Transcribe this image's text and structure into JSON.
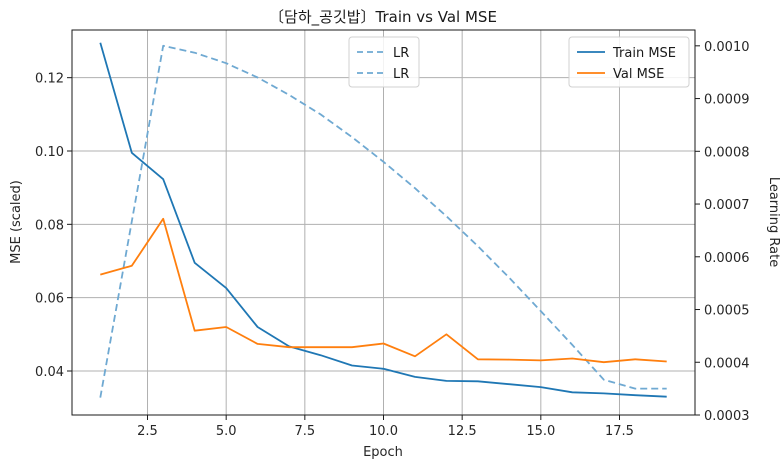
{
  "chart_data": {
    "type": "line",
    "title": "〔담하_공깃밥〕Train vs Val MSE",
    "xlabel": "Epoch",
    "ylabel_left": "MSE (scaled)",
    "ylabel_right": "Learning Rate",
    "xlim": [
      0.1,
      19.9
    ],
    "ylim_left": [
      0.028,
      0.133
    ],
    "ylim_right": [
      0.0003,
      0.00103
    ],
    "x_ticks": [
      2.5,
      5.0,
      7.5,
      10.0,
      12.5,
      15.0,
      17.5
    ],
    "x_tick_labels": [
      "2.5",
      "5.0",
      "7.5",
      "10.0",
      "12.5",
      "15.0",
      "17.5"
    ],
    "y_left_ticks": [
      0.04,
      0.06,
      0.08,
      0.1,
      0.12
    ],
    "y_left_tick_labels": [
      "0.04",
      "0.06",
      "0.08",
      "0.10",
      "0.12"
    ],
    "y_right_ticks": [
      0.0003,
      0.0004,
      0.0005,
      0.0006,
      0.0007,
      0.0008,
      0.0009,
      0.001
    ],
    "y_right_tick_labels": [
      "0.0003",
      "0.0004",
      "0.0005",
      "0.0006",
      "0.0007",
      "0.0008",
      "0.0009",
      "0.0010"
    ],
    "grid": true,
    "x": [
      1,
      2,
      3,
      4,
      5,
      6,
      7,
      8,
      9,
      10,
      11,
      12,
      13,
      14,
      15,
      16,
      17,
      18,
      19
    ],
    "series": [
      {
        "name": "Train MSE",
        "axis": "left",
        "color": "#1f77b4",
        "style": "solid",
        "values": [
          0.1295,
          0.0995,
          0.0923,
          0.0695,
          0.0626,
          0.052,
          0.0467,
          0.0443,
          0.0415,
          0.0406,
          0.0384,
          0.0373,
          0.0372,
          0.0364,
          0.0356,
          0.0342,
          0.0339,
          0.0334,
          0.033
        ]
      },
      {
        "name": "Val MSE",
        "axis": "left",
        "color": "#ff7f0e",
        "style": "solid",
        "values": [
          0.0663,
          0.0687,
          0.0815,
          0.051,
          0.052,
          0.0474,
          0.0465,
          0.0465,
          0.0465,
          0.0475,
          0.044,
          0.05,
          0.0432,
          0.0431,
          0.0429,
          0.0434,
          0.0424,
          0.0432,
          0.0426
        ]
      },
      {
        "name": "LR",
        "axis": "right",
        "color": "#6fa9d2",
        "style": "dashed",
        "values": [
          0.000333,
          0.000667,
          0.001,
          0.000987,
          0.000967,
          0.00094,
          0.000907,
          0.00087,
          0.000827,
          0.00078,
          0.00073,
          0.000677,
          0.00062,
          0.00056,
          0.000497,
          0.000433,
          0.000367,
          0.00035,
          0.00035
        ]
      }
    ],
    "legend_left": {
      "placement": "top-center",
      "entries": [
        "LR",
        "LR"
      ]
    },
    "legend_right": {
      "placement": "top-right",
      "entries": [
        "Train MSE",
        "Val MSE"
      ]
    }
  }
}
